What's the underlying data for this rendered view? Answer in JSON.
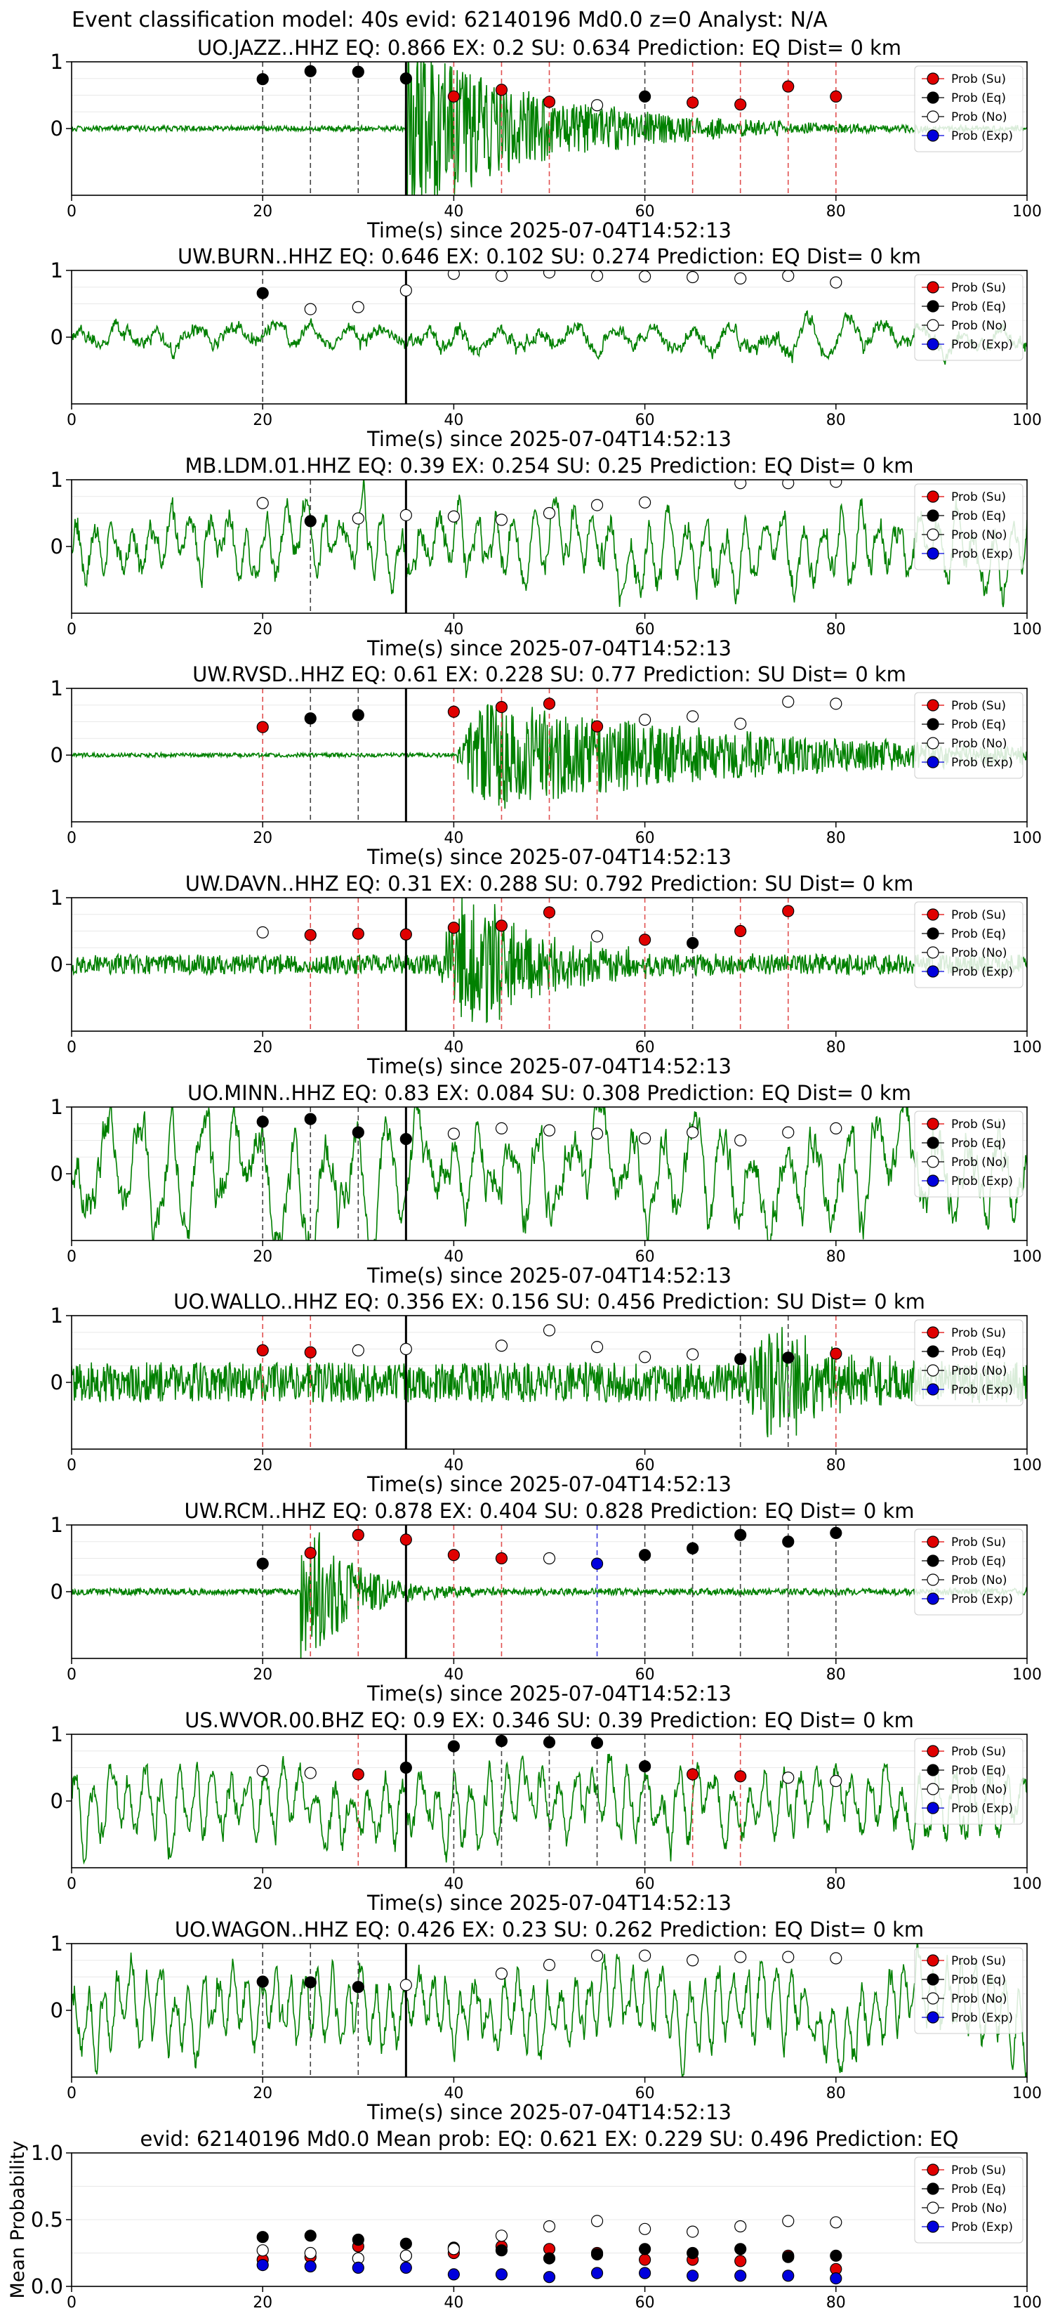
{
  "figure": {
    "title": "Event classification model: 40s evid: 62140196 Md0.0 z=0 Analyst: N/A",
    "legend_labels": [
      "Prob (Su)",
      "Prob (Eq)",
      "Prob (No)",
      "Prob (Exp)"
    ],
    "colors": {
      "su": "#e00000",
      "eq": "#000000",
      "no": "#ffffff",
      "exp": "#0000dd",
      "waveform": "#008000",
      "pick": "#000000"
    }
  },
  "chart_data": [
    {
      "type": "line",
      "title": "UO.JAZZ..HHZ   EQ: 0.866  EX: 0.2  SU: 0.634   Prediction: EQ    Dist= 0 km",
      "xlabel": "Time(s) since 2025-07-04T14:52:13",
      "ylabel": "",
      "xlim": [
        0,
        100
      ],
      "ylim": [
        -1,
        1
      ],
      "xticks": [
        "0",
        "20",
        "40",
        "60",
        "80",
        "100"
      ],
      "yticks": [
        "1",
        "0"
      ],
      "legend": "top-right",
      "pick_time": 35,
      "waveform": {
        "style": "impulsive",
        "noise": 0.04,
        "onset": 35,
        "peak": 1.0,
        "decay": 14,
        "period": 0.8,
        "seed": 11
      },
      "points": [
        {
          "t": 20,
          "c": "eq",
          "p": 0.74
        },
        {
          "t": 25,
          "c": "eq",
          "p": 0.86
        },
        {
          "t": 30,
          "c": "eq",
          "p": 0.85
        },
        {
          "t": 35,
          "c": "eq",
          "p": 0.75
        },
        {
          "t": 40,
          "c": "su",
          "p": 0.48
        },
        {
          "t": 45,
          "c": "su",
          "p": 0.58
        },
        {
          "t": 50,
          "c": "su",
          "p": 0.4
        },
        {
          "t": 55,
          "c": "no",
          "p": 0.35
        },
        {
          "t": 60,
          "c": "eq",
          "p": 0.48
        },
        {
          "t": 65,
          "c": "su",
          "p": 0.39
        },
        {
          "t": 70,
          "c": "su",
          "p": 0.36
        },
        {
          "t": 75,
          "c": "su",
          "p": 0.63
        },
        {
          "t": 80,
          "c": "su",
          "p": 0.48
        }
      ]
    },
    {
      "type": "line",
      "title": "UW.BURN..HHZ   EQ: 0.646  EX: 0.102  SU: 0.274   Prediction: EQ    Dist= 0 km",
      "xlabel": "Time(s) since 2025-07-04T14:52:13",
      "ylabel": "",
      "xlim": [
        0,
        100
      ],
      "ylim": [
        -1,
        1
      ],
      "xticks": [
        "0",
        "20",
        "40",
        "60",
        "80",
        "100"
      ],
      "yticks": [
        "1",
        "0"
      ],
      "legend": "top-right",
      "pick_time": 35,
      "waveform": {
        "style": "smooth",
        "noise": 0.2,
        "onset": 0,
        "peak": 0.25,
        "decay": 0,
        "period": 4.0,
        "seed": 23
      },
      "points": [
        {
          "t": 20,
          "c": "eq",
          "p": 0.66
        },
        {
          "t": 25,
          "c": "no",
          "p": 0.42
        },
        {
          "t": 30,
          "c": "no",
          "p": 0.45
        },
        {
          "t": 35,
          "c": "no",
          "p": 0.7
        },
        {
          "t": 40,
          "c": "no",
          "p": 0.95
        },
        {
          "t": 45,
          "c": "no",
          "p": 0.92
        },
        {
          "t": 50,
          "c": "no",
          "p": 0.97
        },
        {
          "t": 55,
          "c": "no",
          "p": 0.92
        },
        {
          "t": 60,
          "c": "no",
          "p": 0.91
        },
        {
          "t": 65,
          "c": "no",
          "p": 0.9
        },
        {
          "t": 70,
          "c": "no",
          "p": 0.88
        },
        {
          "t": 75,
          "c": "no",
          "p": 0.92
        },
        {
          "t": 80,
          "c": "no",
          "p": 0.82
        }
      ]
    },
    {
      "type": "line",
      "title": "MB.LDM.01.HHZ   EQ: 0.39  EX: 0.254  SU: 0.25   Prediction: EQ    Dist= 0 km",
      "xlabel": "Time(s) since 2025-07-04T14:52:13",
      "ylabel": "",
      "xlim": [
        0,
        100
      ],
      "ylim": [
        -1,
        1
      ],
      "xticks": [
        "0",
        "20",
        "40",
        "60",
        "80",
        "100"
      ],
      "yticks": [
        "1",
        "0"
      ],
      "legend": "top-right",
      "pick_time": 35,
      "waveform": {
        "style": "smooth",
        "noise": 0.5,
        "onset": 0,
        "peak": 0.3,
        "decay": 0,
        "period": 2.0,
        "seed": 37
      },
      "points": [
        {
          "t": 20,
          "c": "no",
          "p": 0.65
        },
        {
          "t": 25,
          "c": "eq",
          "p": 0.38
        },
        {
          "t": 30,
          "c": "no",
          "p": 0.42
        },
        {
          "t": 35,
          "c": "no",
          "p": 0.47
        },
        {
          "t": 40,
          "c": "no",
          "p": 0.45
        },
        {
          "t": 45,
          "c": "no",
          "p": 0.4
        },
        {
          "t": 50,
          "c": "no",
          "p": 0.5
        },
        {
          "t": 55,
          "c": "no",
          "p": 0.62
        },
        {
          "t": 60,
          "c": "no",
          "p": 0.66
        },
        {
          "t": 70,
          "c": "no",
          "p": 0.95
        },
        {
          "t": 75,
          "c": "no",
          "p": 0.95
        },
        {
          "t": 80,
          "c": "no",
          "p": 0.97
        }
      ]
    },
    {
      "type": "line",
      "title": "UW.RVSD..HHZ   EQ: 0.61  EX: 0.228  SU: 0.77   Prediction: SU    Dist= 0 km",
      "xlabel": "Time(s) since 2025-07-04T14:52:13",
      "ylabel": "",
      "xlim": [
        0,
        100
      ],
      "ylim": [
        -1,
        1
      ],
      "xticks": [
        "0",
        "20",
        "40",
        "60",
        "80",
        "100"
      ],
      "yticks": [
        "1",
        "0"
      ],
      "legend": "top-right",
      "pick_time": 35,
      "waveform": {
        "style": "burst",
        "noise": 0.03,
        "onset": 40,
        "peak": 0.6,
        "decay": 30,
        "period": 0.6,
        "seed": 41
      },
      "points": [
        {
          "t": 20,
          "c": "su",
          "p": 0.42
        },
        {
          "t": 25,
          "c": "eq",
          "p": 0.55
        },
        {
          "t": 30,
          "c": "eq",
          "p": 0.6
        },
        {
          "t": 40,
          "c": "su",
          "p": 0.65
        },
        {
          "t": 45,
          "c": "su",
          "p": 0.72
        },
        {
          "t": 50,
          "c": "su",
          "p": 0.77
        },
        {
          "t": 55,
          "c": "su",
          "p": 0.43
        },
        {
          "t": 60,
          "c": "no",
          "p": 0.53
        },
        {
          "t": 65,
          "c": "no",
          "p": 0.58
        },
        {
          "t": 70,
          "c": "no",
          "p": 0.47
        },
        {
          "t": 75,
          "c": "no",
          "p": 0.8
        },
        {
          "t": 80,
          "c": "no",
          "p": 0.77
        }
      ]
    },
    {
      "type": "line",
      "title": "UW.DAVN..HHZ   EQ: 0.31  EX: 0.288  SU: 0.792   Prediction: SU    Dist= 0 km",
      "xlabel": "Time(s) since 2025-07-04T14:52:13",
      "ylabel": "",
      "xlim": [
        0,
        100
      ],
      "ylim": [
        -1,
        1
      ],
      "xticks": [
        "0",
        "20",
        "40",
        "60",
        "80",
        "100"
      ],
      "yticks": [
        "1",
        "0"
      ],
      "legend": "top-right",
      "pick_time": 35,
      "waveform": {
        "style": "burst",
        "noise": 0.15,
        "onset": 38,
        "peak": 0.75,
        "decay": 8,
        "period": 0.6,
        "seed": 53
      },
      "points": [
        {
          "t": 20,
          "c": "no",
          "p": 0.48
        },
        {
          "t": 25,
          "c": "su",
          "p": 0.44
        },
        {
          "t": 30,
          "c": "su",
          "p": 0.46
        },
        {
          "t": 35,
          "c": "su",
          "p": 0.45
        },
        {
          "t": 40,
          "c": "su",
          "p": 0.55
        },
        {
          "t": 45,
          "c": "su",
          "p": 0.58
        },
        {
          "t": 50,
          "c": "su",
          "p": 0.78
        },
        {
          "t": 55,
          "c": "no",
          "p": 0.42
        },
        {
          "t": 60,
          "c": "su",
          "p": 0.37
        },
        {
          "t": 65,
          "c": "eq",
          "p": 0.32
        },
        {
          "t": 70,
          "c": "su",
          "p": 0.5
        },
        {
          "t": 75,
          "c": "su",
          "p": 0.8
        }
      ]
    },
    {
      "type": "line",
      "title": "UO.MINN..HHZ   EQ: 0.83  EX: 0.084  SU: 0.308   Prediction: EQ    Dist= 0 km",
      "xlabel": "Time(s) since 2025-07-04T14:52:13",
      "ylabel": "",
      "xlim": [
        0,
        100
      ],
      "ylim": [
        -1,
        1
      ],
      "xticks": [
        "0",
        "20",
        "40",
        "60",
        "80",
        "100"
      ],
      "yticks": [
        "1",
        "0"
      ],
      "legend": "top-right",
      "pick_time": 35,
      "waveform": {
        "style": "smooth",
        "noise": 0.75,
        "onset": 0,
        "peak": 0.1,
        "decay": 0,
        "period": 3.2,
        "seed": 67
      },
      "points": [
        {
          "t": 20,
          "c": "eq",
          "p": 0.78
        },
        {
          "t": 25,
          "c": "eq",
          "p": 0.82
        },
        {
          "t": 30,
          "c": "eq",
          "p": 0.62
        },
        {
          "t": 35,
          "c": "eq",
          "p": 0.52
        },
        {
          "t": 40,
          "c": "no",
          "p": 0.6
        },
        {
          "t": 45,
          "c": "no",
          "p": 0.68
        },
        {
          "t": 50,
          "c": "no",
          "p": 0.65
        },
        {
          "t": 55,
          "c": "no",
          "p": 0.6
        },
        {
          "t": 60,
          "c": "no",
          "p": 0.53
        },
        {
          "t": 65,
          "c": "no",
          "p": 0.62
        },
        {
          "t": 70,
          "c": "no",
          "p": 0.5
        },
        {
          "t": 75,
          "c": "no",
          "p": 0.62
        },
        {
          "t": 80,
          "c": "no",
          "p": 0.68
        }
      ]
    },
    {
      "type": "line",
      "title": "UO.WALLO..HHZ   EQ: 0.356  EX: 0.156  SU: 0.456   Prediction: SU    Dist= 0 km",
      "xlabel": "Time(s) since 2025-07-04T14:52:13",
      "ylabel": "",
      "xlim": [
        0,
        100
      ],
      "ylim": [
        -1,
        1
      ],
      "xticks": [
        "0",
        "20",
        "40",
        "60",
        "80",
        "100"
      ],
      "yticks": [
        "1",
        "0"
      ],
      "legend": "top-right",
      "pick_time": 35,
      "waveform": {
        "style": "burst",
        "noise": 0.3,
        "onset": 70,
        "peak": 0.55,
        "decay": 6,
        "period": 0.5,
        "seed": 79
      },
      "points": [
        {
          "t": 20,
          "c": "su",
          "p": 0.48
        },
        {
          "t": 25,
          "c": "su",
          "p": 0.45
        },
        {
          "t": 30,
          "c": "no",
          "p": 0.48
        },
        {
          "t": 35,
          "c": "no",
          "p": 0.5
        },
        {
          "t": 45,
          "c": "no",
          "p": 0.55
        },
        {
          "t": 50,
          "c": "no",
          "p": 0.78
        },
        {
          "t": 55,
          "c": "no",
          "p": 0.53
        },
        {
          "t": 60,
          "c": "no",
          "p": 0.38
        },
        {
          "t": 65,
          "c": "no",
          "p": 0.42
        },
        {
          "t": 70,
          "c": "eq",
          "p": 0.35
        },
        {
          "t": 75,
          "c": "eq",
          "p": 0.37
        },
        {
          "t": 80,
          "c": "su",
          "p": 0.43
        }
      ]
    },
    {
      "type": "line",
      "title": "UW.RCM..HHZ   EQ: 0.878  EX: 0.404  SU: 0.828   Prediction: EQ    Dist= 0 km",
      "xlabel": "Time(s) since 2025-07-04T14:52:13",
      "ylabel": "",
      "xlim": [
        0,
        100
      ],
      "ylim": [
        -1,
        1
      ],
      "xticks": [
        "0",
        "20",
        "40",
        "60",
        "80",
        "100"
      ],
      "yticks": [
        "1",
        "0"
      ],
      "legend": "top-right",
      "pick_time": 35,
      "waveform": {
        "style": "impulsive",
        "noise": 0.05,
        "onset": 24,
        "peak": 0.9,
        "decay": 5,
        "period": 0.5,
        "seed": 97
      },
      "points": [
        {
          "t": 20,
          "c": "eq",
          "p": 0.42
        },
        {
          "t": 25,
          "c": "su",
          "p": 0.58
        },
        {
          "t": 30,
          "c": "su",
          "p": 0.85
        },
        {
          "t": 35,
          "c": "su",
          "p": 0.78
        },
        {
          "t": 40,
          "c": "su",
          "p": 0.55
        },
        {
          "t": 45,
          "c": "su",
          "p": 0.5
        },
        {
          "t": 50,
          "c": "no",
          "p": 0.5
        },
        {
          "t": 55,
          "c": "exp",
          "p": 0.42
        },
        {
          "t": 60,
          "c": "eq",
          "p": 0.55
        },
        {
          "t": 65,
          "c": "eq",
          "p": 0.65
        },
        {
          "t": 70,
          "c": "eq",
          "p": 0.85
        },
        {
          "t": 75,
          "c": "eq",
          "p": 0.75
        },
        {
          "t": 80,
          "c": "eq",
          "p": 0.88
        }
      ]
    },
    {
      "type": "line",
      "title": "US.WVOR.00.BHZ   EQ: 0.9  EX: 0.346  SU: 0.39   Prediction: EQ    Dist= 0 km",
      "xlabel": "Time(s) since 2025-07-04T14:52:13",
      "ylabel": "",
      "xlim": [
        0,
        100
      ],
      "ylim": [
        -1,
        1
      ],
      "xticks": [
        "0",
        "20",
        "40",
        "60",
        "80",
        "100"
      ],
      "yticks": [
        "1",
        "0"
      ],
      "legend": "top-right",
      "pick_time": 35,
      "waveform": {
        "style": "smooth",
        "noise": 0.55,
        "onset": 0,
        "peak": 0.2,
        "decay": 0,
        "period": 1.8,
        "seed": 101
      },
      "points": [
        {
          "t": 20,
          "c": "no",
          "p": 0.45
        },
        {
          "t": 25,
          "c": "no",
          "p": 0.42
        },
        {
          "t": 30,
          "c": "su",
          "p": 0.4
        },
        {
          "t": 35,
          "c": "eq",
          "p": 0.5
        },
        {
          "t": 40,
          "c": "eq",
          "p": 0.82
        },
        {
          "t": 45,
          "c": "eq",
          "p": 0.9
        },
        {
          "t": 50,
          "c": "eq",
          "p": 0.88
        },
        {
          "t": 55,
          "c": "eq",
          "p": 0.87
        },
        {
          "t": 60,
          "c": "eq",
          "p": 0.52
        },
        {
          "t": 65,
          "c": "su",
          "p": 0.4
        },
        {
          "t": 70,
          "c": "su",
          "p": 0.37
        },
        {
          "t": 75,
          "c": "no",
          "p": 0.35
        },
        {
          "t": 80,
          "c": "no",
          "p": 0.3
        }
      ]
    },
    {
      "type": "line",
      "title": "UO.WAGON..HHZ   EQ: 0.426  EX: 0.23  SU: 0.262   Prediction: EQ    Dist= 0 km",
      "xlabel": "Time(s) since 2025-07-04T14:52:13",
      "ylabel": "",
      "xlim": [
        0,
        100
      ],
      "ylim": [
        -1,
        1
      ],
      "xticks": [
        "0",
        "20",
        "40",
        "60",
        "80",
        "100"
      ],
      "yticks": [
        "1",
        "0"
      ],
      "legend": "top-right",
      "pick_time": 35,
      "waveform": {
        "style": "smooth",
        "noise": 0.55,
        "onset": 0,
        "peak": 0.2,
        "decay": 0,
        "period": 1.5,
        "seed": 113
      },
      "points": [
        {
          "t": 20,
          "c": "eq",
          "p": 0.43
        },
        {
          "t": 25,
          "c": "eq",
          "p": 0.42
        },
        {
          "t": 30,
          "c": "eq",
          "p": 0.35
        },
        {
          "t": 35,
          "c": "no",
          "p": 0.38
        },
        {
          "t": 45,
          "c": "no",
          "p": 0.55
        },
        {
          "t": 50,
          "c": "no",
          "p": 0.68
        },
        {
          "t": 55,
          "c": "no",
          "p": 0.82
        },
        {
          "t": 60,
          "c": "no",
          "p": 0.82
        },
        {
          "t": 65,
          "c": "no",
          "p": 0.75
        },
        {
          "t": 70,
          "c": "no",
          "p": 0.8
        },
        {
          "t": 75,
          "c": "no",
          "p": 0.8
        },
        {
          "t": 80,
          "c": "no",
          "p": 0.78
        }
      ]
    },
    {
      "type": "scatter",
      "title": "evid: 62140196  Md0.0   Mean prob:   EQ: 0.621  EX: 0.229  SU: 0.496   Prediction: EQ",
      "xlabel": "",
      "ylabel": "Mean Probability",
      "xlim": [
        0,
        100
      ],
      "ylim": [
        0,
        1
      ],
      "xticks": [
        "0",
        "20",
        "40",
        "60",
        "80",
        "100"
      ],
      "yticks": [
        "1.0",
        "0.5",
        "0.0"
      ],
      "legend": "top-right",
      "x": [
        20,
        25,
        30,
        35,
        40,
        45,
        50,
        55,
        60,
        65,
        70,
        75,
        80
      ],
      "series": [
        {
          "name": "Prob (Su)",
          "c": "su",
          "values": [
            0.2,
            0.22,
            0.3,
            0.23,
            0.25,
            0.3,
            0.28,
            0.25,
            0.2,
            0.2,
            0.19,
            0.23,
            0.13
          ]
        },
        {
          "name": "Prob (Eq)",
          "c": "eq",
          "values": [
            0.37,
            0.38,
            0.35,
            0.32,
            0.29,
            0.27,
            0.21,
            0.24,
            0.28,
            0.25,
            0.28,
            0.22,
            0.23
          ]
        },
        {
          "name": "Prob (No)",
          "c": "no",
          "values": [
            0.27,
            0.25,
            0.21,
            0.23,
            0.28,
            0.38,
            0.45,
            0.49,
            0.43,
            0.41,
            0.45,
            0.49,
            0.48
          ]
        },
        {
          "name": "Prob (Exp)",
          "c": "exp",
          "values": [
            0.16,
            0.15,
            0.14,
            0.14,
            0.09,
            0.09,
            0.07,
            0.1,
            0.1,
            0.08,
            0.08,
            0.08,
            0.06
          ]
        }
      ]
    }
  ]
}
